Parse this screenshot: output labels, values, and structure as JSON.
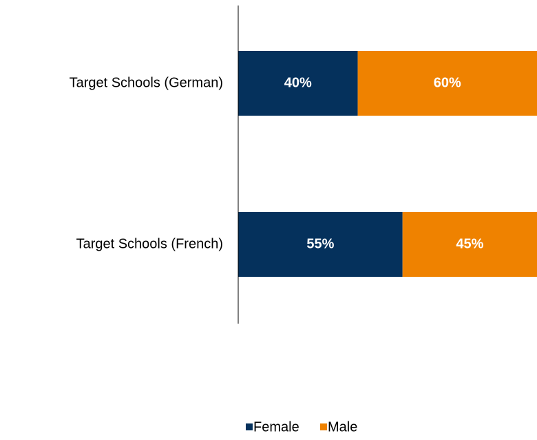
{
  "chart_data": {
    "type": "stacked_barh",
    "categories": [
      "Target Schools (German)",
      "Target Schools (French)"
    ],
    "series": [
      {
        "name": "Female",
        "color": "#05315c",
        "values": [
          40,
          55
        ],
        "value_labels": [
          "40%",
          "55%"
        ]
      },
      {
        "name": "Male",
        "color": "#ef8200",
        "values": [
          60,
          45
        ],
        "value_labels": [
          "60%",
          "45%"
        ]
      }
    ],
    "xlim": [
      0,
      100
    ]
  }
}
